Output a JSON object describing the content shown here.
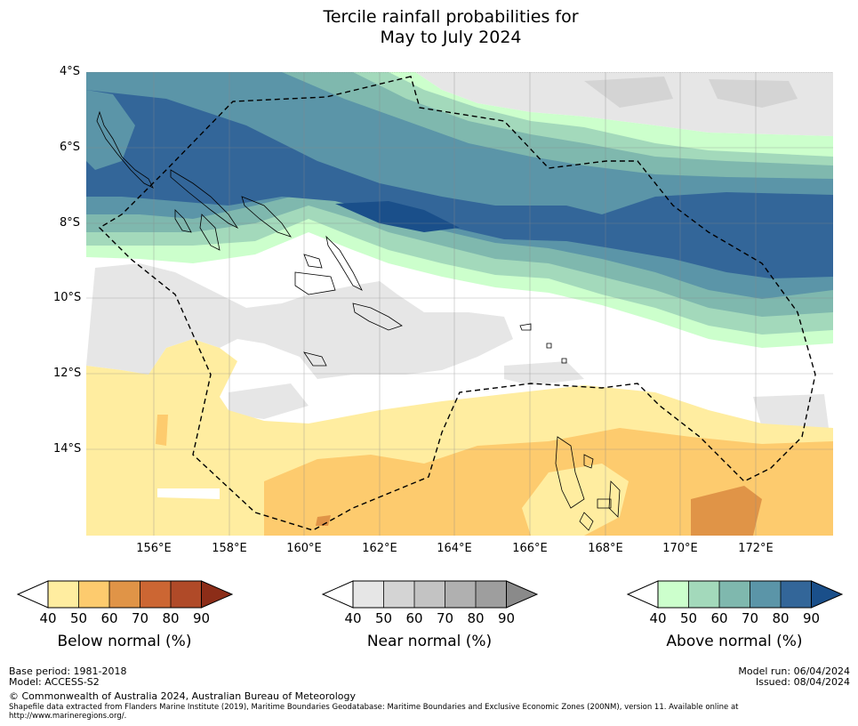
{
  "title_line1": "Tercile rainfall probabilities for",
  "title_line2": "May to July 2024",
  "y_axis": [
    "4°S",
    "6°S",
    "8°S",
    "10°S",
    "12°S",
    "14°S"
  ],
  "x_axis": [
    "156°E",
    "158°E",
    "160°E",
    "162°E",
    "164°E",
    "166°E",
    "168°E",
    "170°E",
    "172°E"
  ],
  "colorbars": {
    "below": {
      "title": "Below normal (%)",
      "ticks": [
        "40",
        "50",
        "60",
        "70",
        "80",
        "90"
      ],
      "colors": [
        "#ffeda0",
        "#fdcb6e",
        "#e09447",
        "#cc6633",
        "#b04a28",
        "#8c2d18"
      ]
    },
    "near": {
      "title": "Near normal (%)",
      "ticks": [
        "40",
        "50",
        "60",
        "70",
        "80",
        "90"
      ],
      "colors": [
        "#e6e6e6",
        "#d4d4d4",
        "#c3c3c3",
        "#b0b0b0",
        "#9e9e9e",
        "#8a8a8a"
      ]
    },
    "above": {
      "title": "Above normal (%)",
      "ticks": [
        "40",
        "50",
        "60",
        "70",
        "80",
        "90"
      ],
      "colors": [
        "#ccffcc",
        "#a3d9bb",
        "#7fb8ae",
        "#5b95a8",
        "#336699",
        "#1a4f8a"
      ]
    }
  },
  "footer": {
    "base_period": "Base period: 1981-2018",
    "model": "Model: ACCESS-S2",
    "model_run": "Model run: 06/04/2024",
    "issued": "Issued: 08/04/2024",
    "copyright": "© Commonwealth of Australia 2024, Australian Bureau of Meteorology",
    "shapefile_line1": "Shapefile data extracted from Flanders Marine Institute (2019), Maritime Boundaries Geodatabase: Maritime Boundaries and Exclusive Economic Zones (200NM), version 11. Available online at",
    "shapefile_line2": "http://www.marineregions.org/."
  }
}
